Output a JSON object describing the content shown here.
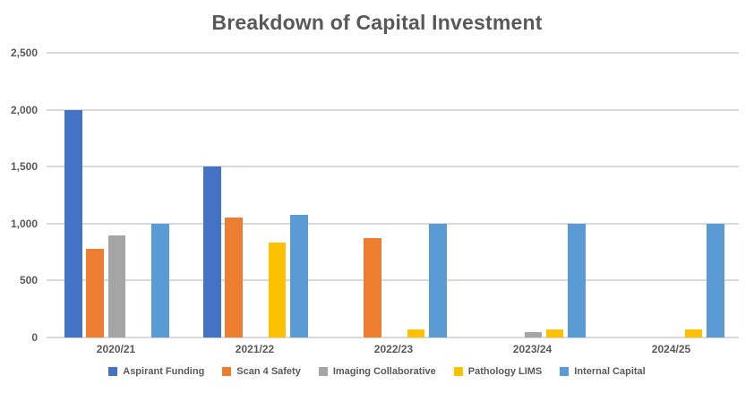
{
  "chart_data": {
    "type": "bar",
    "title": "Breakdown of Capital Investment",
    "categories": [
      "2020/21",
      "2021/22",
      "2022/23",
      "2023/24",
      "2024/25"
    ],
    "series": [
      {
        "name": "Aspirant Funding",
        "color": "#4472C4",
        "values": [
          2000,
          1500,
          0,
          0,
          0
        ]
      },
      {
        "name": "Scan 4 Safety",
        "color": "#ED7D31",
        "values": [
          775,
          1050,
          870,
          0,
          0
        ]
      },
      {
        "name": "Imaging Collaborative",
        "color": "#A5A5A5",
        "values": [
          900,
          0,
          0,
          45,
          0
        ]
      },
      {
        "name": "Pathology LIMS",
        "color": "#FFC000",
        "values": [
          0,
          830,
          70,
          70,
          70
        ]
      },
      {
        "name": "Internal Capital",
        "color": "#5B9BD5",
        "values": [
          1000,
          1080,
          1000,
          1000,
          1000
        ]
      }
    ],
    "ylim": [
      0,
      2500
    ],
    "ytick_step": 500,
    "ytick_labels": [
      "0",
      "500",
      "1,000",
      "1,500",
      "2,000",
      "2,500"
    ],
    "xlabel": "",
    "ylabel": "",
    "grid": true,
    "legend_position": "bottom",
    "title_color": "#595959",
    "axis_text_color": "#595959",
    "grid_color": "#D9D9D9",
    "background_color": "#FFFFFF"
  }
}
